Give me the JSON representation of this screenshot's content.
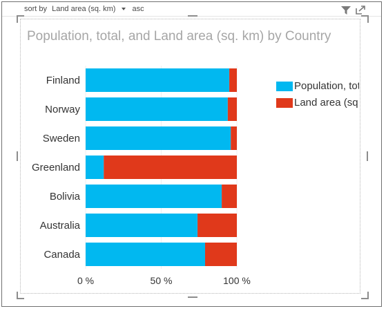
{
  "header": {
    "sort_prefix": "sort by",
    "sort_field": "Land area (sq. km)",
    "sort_order": "asc",
    "filter_icon": "filter-icon",
    "expand_icon": "focus-mode-icon"
  },
  "chart_data": {
    "type": "bar",
    "orientation": "horizontal",
    "stacked": "100%",
    "title": "Population, total, and Land area (sq. km) by Country",
    "xlabel": "",
    "ylabel": "",
    "xlim": [
      0,
      100
    ],
    "x_ticks": [
      "0 %",
      "50 %",
      "100 %"
    ],
    "grid": true,
    "legend_position": "right",
    "categories": [
      "Finland",
      "Norway",
      "Sweden",
      "Greenland",
      "Bolivia",
      "Australia",
      "Canada"
    ],
    "series": [
      {
        "name": "Population, total",
        "color": "#01b8f0",
        "values": [
          95,
          94,
          96,
          12,
          90,
          74,
          79
        ]
      },
      {
        "name": "Land area (sq. km)",
        "color": "#e0391b",
        "values": [
          5,
          6,
          4,
          88,
          10,
          26,
          21
        ]
      }
    ]
  }
}
